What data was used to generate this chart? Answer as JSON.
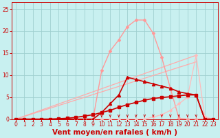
{
  "bg_color": "#c8f0f0",
  "grid_color": "#a0d0d0",
  "xlim": [
    -0.5,
    23.5
  ],
  "ylim": [
    0,
    26.5
  ],
  "xticks": [
    0,
    1,
    2,
    3,
    4,
    5,
    6,
    7,
    8,
    9,
    10,
    11,
    12,
    13,
    14,
    15,
    16,
    17,
    18,
    19,
    20,
    21,
    22,
    23
  ],
  "yticks": [
    0,
    5,
    10,
    15,
    20,
    25
  ],
  "xlabel": "Vent moyen/en rafales ( km/h )",
  "tick_color": "#cc0000",
  "label_color": "#cc0000",
  "tick_fontsize": 5.5,
  "xlabel_fontsize": 7.5,
  "line_pink_bell": {
    "x": [
      0,
      1,
      2,
      3,
      4,
      5,
      6,
      7,
      8,
      9,
      10,
      11,
      12,
      13,
      14,
      15,
      16,
      17,
      18,
      19,
      20,
      21,
      22,
      23
    ],
    "y": [
      0,
      0,
      0,
      0,
      0,
      0,
      0,
      0,
      0,
      0,
      11,
      15.5,
      18,
      21,
      22.5,
      22.5,
      19.5,
      14,
      7,
      0.2,
      0,
      0,
      0,
      0
    ],
    "color": "#ff9999",
    "lw": 1.0,
    "marker": "D",
    "ms": 2.0
  },
  "line_pink_straight1": {
    "x": [
      0,
      21
    ],
    "y": [
      0,
      14.5
    ],
    "color": "#ffaaaa",
    "lw": 0.9
  },
  "line_pink_straight2": {
    "x": [
      0,
      21
    ],
    "y": [
      0,
      13.0
    ],
    "color": "#ffaaaa",
    "lw": 0.9
  },
  "line_pink_tail": {
    "x": [
      0,
      1,
      2,
      3,
      4,
      5,
      6,
      7,
      8,
      9,
      10,
      11,
      12,
      13,
      14,
      15,
      16,
      17,
      18,
      19,
      20,
      21,
      22,
      23
    ],
    "y": [
      0,
      0,
      0,
      0,
      0,
      0,
      0,
      0,
      0,
      0,
      0,
      0,
      0,
      0,
      0,
      0,
      0.5,
      1.0,
      2.0,
      3.5,
      5.0,
      14.5,
      0.5,
      0
    ],
    "color": "#ffbbbb",
    "lw": 0.9,
    "marker": "D",
    "ms": 1.8
  },
  "line_dark_triangle": {
    "x": [
      0,
      1,
      2,
      3,
      4,
      5,
      6,
      7,
      8,
      9,
      10,
      11,
      12,
      13,
      14,
      15,
      16,
      17,
      18,
      19,
      20,
      21,
      22,
      23
    ],
    "y": [
      0,
      0,
      0,
      0,
      0,
      0,
      0,
      0,
      0,
      0,
      1.5,
      3.5,
      5.5,
      9.5,
      9.0,
      8.5,
      8.0,
      7.5,
      7.0,
      6.2,
      5.8,
      5.5,
      0,
      0
    ],
    "color": "#cc0000",
    "lw": 1.2,
    "marker": "^",
    "ms": 3.0
  },
  "line_dark_square": {
    "x": [
      0,
      1,
      2,
      3,
      4,
      5,
      6,
      7,
      8,
      9,
      10,
      11,
      12,
      13,
      14,
      15,
      16,
      17,
      18,
      19,
      20,
      21,
      22,
      23
    ],
    "y": [
      0,
      0,
      0,
      0,
      0,
      0.1,
      0.2,
      0.4,
      0.7,
      1.0,
      1.5,
      2.0,
      2.7,
      3.3,
      3.8,
      4.3,
      4.7,
      4.9,
      5.1,
      5.3,
      5.5,
      5.5,
      0,
      0
    ],
    "color": "#cc0000",
    "lw": 1.2,
    "marker": "s",
    "ms": 2.2
  },
  "arrows_x": [
    10,
    11,
    12,
    13,
    14,
    15,
    16,
    17,
    18,
    19,
    20,
    21
  ],
  "arrow_color": "#cc0000"
}
